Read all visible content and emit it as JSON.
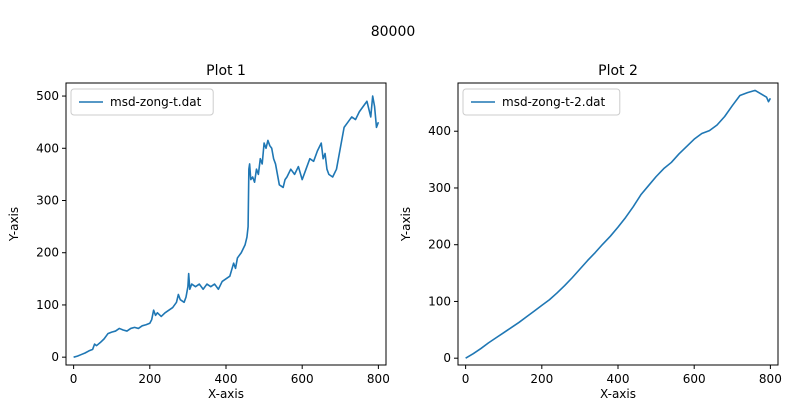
{
  "figure": {
    "suptitle": "80000"
  },
  "chart_data": [
    {
      "type": "line",
      "title": "Plot 1",
      "xlabel": "X-axis",
      "ylabel": "Y-axis",
      "xlim": [
        -20,
        820
      ],
      "ylim": [
        -15,
        525
      ],
      "xticks": [
        0,
        200,
        400,
        600,
        800
      ],
      "yticks": [
        0,
        100,
        200,
        300,
        400,
        500
      ],
      "grid": false,
      "legend_position": "upper-left",
      "color": "#1f77b4",
      "series": [
        {
          "name": "msd-zong-t.dat",
          "x": [
            0,
            10,
            20,
            30,
            40,
            50,
            55,
            60,
            70,
            80,
            90,
            100,
            110,
            120,
            130,
            140,
            150,
            160,
            170,
            180,
            190,
            200,
            205,
            210,
            215,
            220,
            230,
            240,
            250,
            260,
            270,
            275,
            280,
            290,
            295,
            300,
            302,
            305,
            310,
            320,
            330,
            340,
            350,
            360,
            370,
            380,
            390,
            400,
            410,
            420,
            425,
            430,
            440,
            450,
            455,
            458,
            460,
            462,
            465,
            470,
            475,
            480,
            485,
            490,
            495,
            500,
            505,
            510,
            515,
            520,
            525,
            530,
            540,
            550,
            555,
            560,
            570,
            580,
            590,
            600,
            610,
            620,
            630,
            640,
            650,
            655,
            660,
            665,
            670,
            680,
            690,
            695,
            700,
            710,
            720,
            730,
            740,
            750,
            760,
            770,
            780,
            785,
            790,
            795,
            800
          ],
          "y": [
            0,
            2,
            5,
            8,
            12,
            15,
            25,
            22,
            28,
            35,
            45,
            48,
            50,
            55,
            52,
            50,
            55,
            57,
            55,
            60,
            62,
            65,
            72,
            90,
            80,
            85,
            78,
            85,
            90,
            95,
            105,
            120,
            110,
            105,
            115,
            135,
            160,
            130,
            140,
            135,
            140,
            130,
            140,
            135,
            140,
            130,
            145,
            150,
            155,
            180,
            170,
            190,
            200,
            215,
            230,
            250,
            360,
            370,
            340,
            345,
            335,
            360,
            350,
            380,
            370,
            410,
            400,
            415,
            405,
            400,
            380,
            370,
            330,
            325,
            340,
            345,
            360,
            350,
            365,
            340,
            360,
            380,
            375,
            395,
            410,
            380,
            390,
            360,
            350,
            345,
            360,
            380,
            400,
            440,
            450,
            460,
            455,
            470,
            480,
            490,
            460,
            500,
            480,
            440,
            450
          ]
        }
      ]
    },
    {
      "type": "line",
      "title": "Plot 2",
      "xlabel": "X-axis",
      "ylabel": "Y-axis",
      "xlim": [
        -20,
        820
      ],
      "ylim": [
        -12,
        485
      ],
      "xticks": [
        0,
        200,
        400,
        600,
        800
      ],
      "yticks": [
        0,
        100,
        200,
        300,
        400
      ],
      "grid": false,
      "legend_position": "upper-left",
      "color": "#1f77b4",
      "series": [
        {
          "name": "msd-zong-t-2.dat",
          "x": [
            0,
            20,
            40,
            60,
            80,
            100,
            120,
            140,
            160,
            180,
            200,
            220,
            240,
            260,
            280,
            300,
            320,
            340,
            360,
            380,
            400,
            420,
            440,
            460,
            480,
            500,
            520,
            540,
            560,
            580,
            600,
            620,
            640,
            660,
            680,
            700,
            720,
            740,
            750,
            760,
            770,
            780,
            790,
            795,
            800
          ],
          "y": [
            0,
            8,
            17,
            27,
            36,
            45,
            54,
            63,
            73,
            83,
            93,
            103,
            115,
            128,
            142,
            157,
            172,
            186,
            201,
            215,
            231,
            248,
            267,
            288,
            304,
            320,
            334,
            345,
            360,
            373,
            386,
            396,
            401,
            411,
            426,
            445,
            463,
            468,
            470,
            472,
            468,
            464,
            460,
            452,
            458
          ]
        }
      ]
    }
  ]
}
